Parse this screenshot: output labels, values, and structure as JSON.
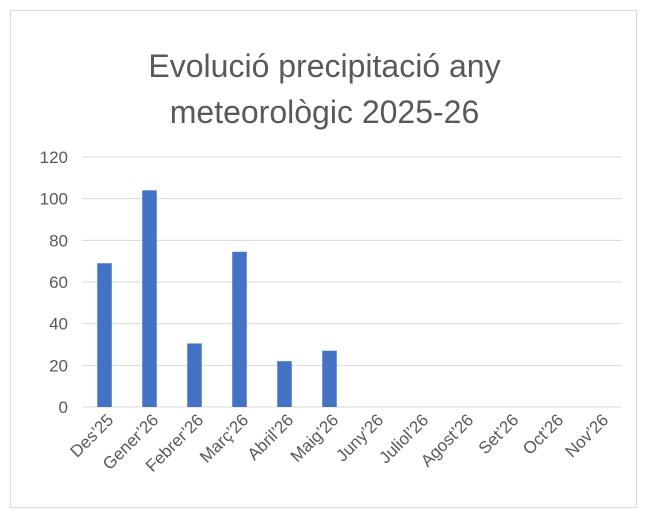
{
  "chart_data": {
    "type": "bar",
    "title_lines": [
      "Evolució precipitació any",
      "meteorològic 2025-26"
    ],
    "categories": [
      "Des’25",
      "Gener’26",
      "Febrer’26",
      "Març’26",
      "Abril’26",
      "Maig’26",
      "Juny’26",
      "Juliol’26",
      "Agost’26",
      "Set’26",
      "Oct’26",
      "Nov’26"
    ],
    "values": [
      69,
      104,
      30.5,
      74.5,
      22,
      27,
      null,
      null,
      null,
      null,
      null,
      null
    ],
    "ylim": [
      0,
      120
    ],
    "yticks": [
      0,
      20,
      40,
      60,
      80,
      100,
      120
    ],
    "grid": true,
    "bar_color": "#4472c4",
    "legend": false
  }
}
